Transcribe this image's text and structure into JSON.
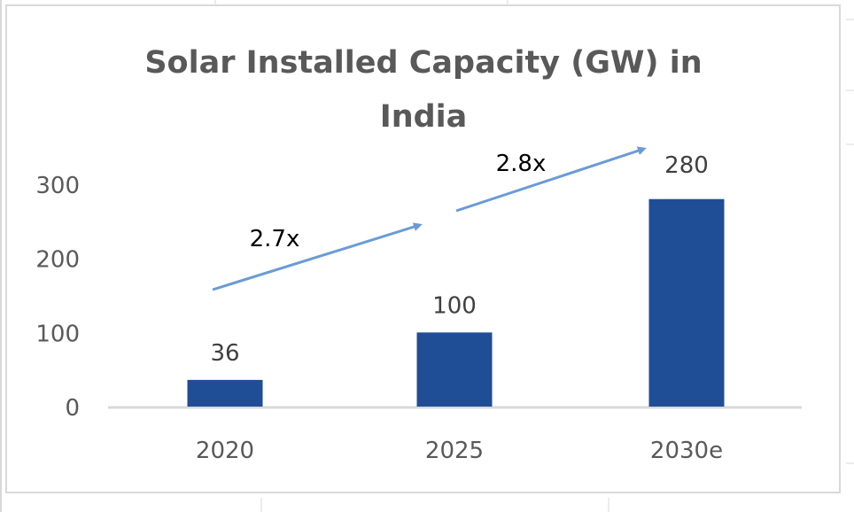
{
  "chart_data": {
    "type": "bar",
    "title": "Solar Installed Capacity (GW) in India",
    "title_lines": [
      "Solar Installed Capacity (GW) in",
      "India"
    ],
    "xlabel": "",
    "ylabel": "",
    "categories": [
      "2020",
      "2025",
      "2030e"
    ],
    "values": [
      36,
      100,
      280
    ],
    "data_labels": [
      "36",
      "100",
      "280"
    ],
    "yticks": [
      "0",
      "100",
      "200",
      "300"
    ],
    "ytick_values": [
      0,
      100,
      200,
      300
    ],
    "ylim": [
      0,
      300
    ],
    "grid": false,
    "legend": "none",
    "annotations": [
      {
        "text": "2.7x",
        "from_category": "2020",
        "to_category": "2025"
      },
      {
        "text": "2.8x",
        "from_category": "2025",
        "to_category": "2030e"
      }
    ],
    "colors": {
      "bar": "#1f4e96",
      "arrow": "#6a9bd6",
      "axis": "#d9d9d9",
      "text": "#595959"
    }
  }
}
